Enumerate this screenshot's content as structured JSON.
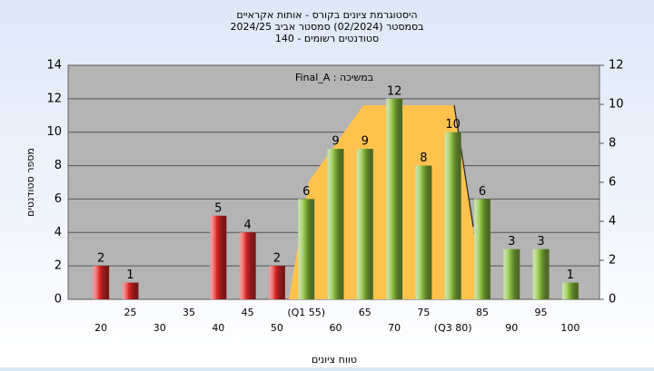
{
  "chart_data": {
    "type": "bar",
    "title": [
      "היסטוגרמת ציונים בקורס - אותות אקראיים",
      "בסמסטר  (02/2024)  סמסטר אביב 2024/25",
      "סטודנטים רשומים - 140"
    ],
    "annotation": "Final_A : במשיכה",
    "xlabel": "טווח ציונים",
    "ylabel": "מספר סטודנטים",
    "categories": [
      "20",
      "25",
      "30",
      "35",
      "40",
      "45",
      "50",
      "(Q1 55)",
      "60",
      "65",
      "70",
      "75",
      "(Q3 80)",
      "85",
      "90",
      "95",
      "100"
    ],
    "values": [
      2,
      1,
      0,
      0,
      5,
      4,
      2,
      6,
      9,
      9,
      12,
      8,
      10,
      6,
      3,
      3,
      1
    ],
    "colors": [
      "#e02828",
      "#e02828",
      "#e02828",
      "#e02828",
      "#e02828",
      "#e02828",
      "#e02828",
      "#8cc040",
      "#8cc040",
      "#8cc040",
      "#8cc040",
      "#8cc040",
      "#8cc040",
      "#8cc040",
      "#8cc040",
      "#8cc040",
      "#8cc040"
    ],
    "ylim": [
      0,
      14
    ],
    "yticks": [
      0,
      2,
      4,
      6,
      8,
      10,
      12,
      14
    ],
    "y2lim": [
      0,
      12
    ],
    "y2ticks": [
      0,
      2,
      4,
      6,
      8,
      10,
      12
    ],
    "grid": true
  }
}
